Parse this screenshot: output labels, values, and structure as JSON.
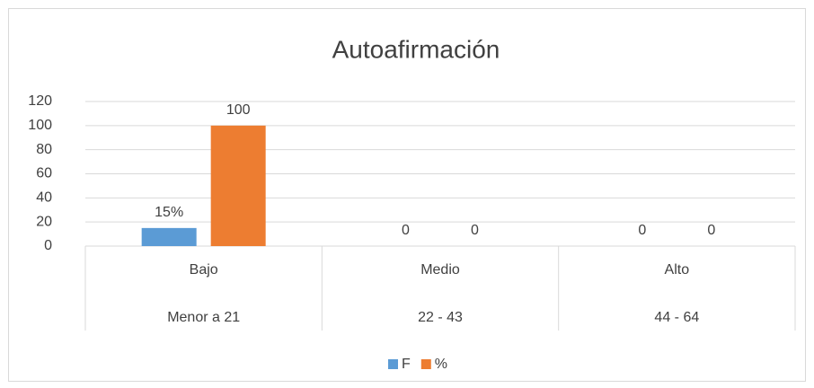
{
  "chart_data": {
    "type": "bar",
    "title": "Autoafirmación",
    "categories": [
      "Bajo",
      "Medio",
      "Alto"
    ],
    "subcategories": [
      "Menor a 21",
      "22 - 43",
      "44 - 64"
    ],
    "series": [
      {
        "name": "F",
        "color": "#5b9bd5",
        "values": [
          15,
          0,
          0
        ],
        "value_labels": [
          "15%",
          "0",
          "0"
        ]
      },
      {
        "name": "%",
        "color": "#ed7d31",
        "values": [
          100,
          0,
          0
        ]
      }
    ],
    "ylim": [
      0,
      120
    ],
    "yticks": [
      0,
      20,
      40,
      60,
      80,
      100,
      120
    ],
    "grid": true,
    "legend": "bottom"
  }
}
